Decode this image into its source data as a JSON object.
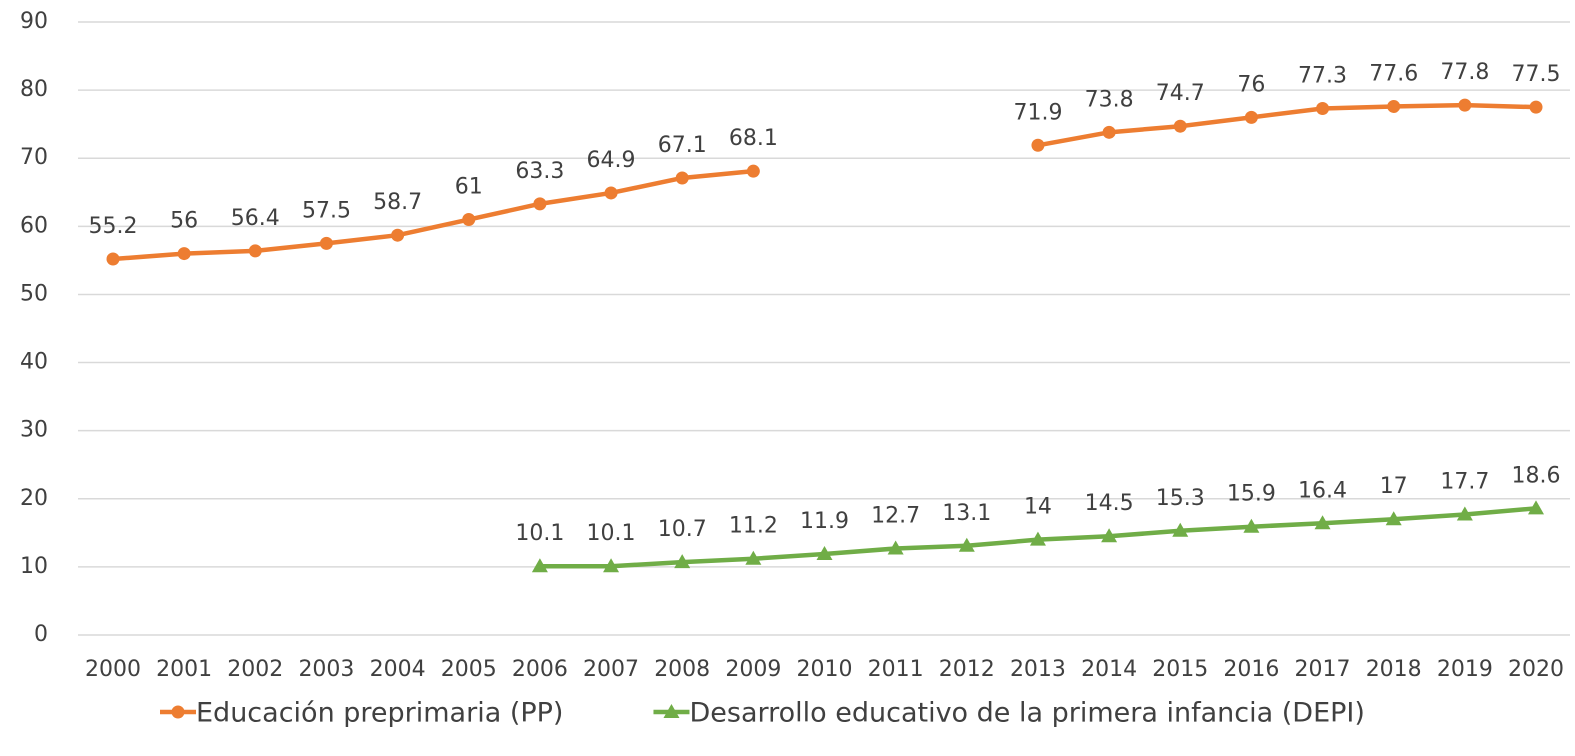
{
  "chart_data": {
    "type": "line",
    "categories": [
      "2000",
      "2001",
      "2002",
      "2003",
      "2004",
      "2005",
      "2006",
      "2007",
      "2008",
      "2009",
      "2010",
      "2011",
      "2012",
      "2013",
      "2014",
      "2015",
      "2016",
      "2017",
      "2018",
      "2019",
      "2020"
    ],
    "series": [
      {
        "name": "Educación preprimaria (PP)",
        "color": "#ed7d31",
        "marker": "circle",
        "values": [
          55.2,
          56,
          56.4,
          57.5,
          58.7,
          61,
          63.3,
          64.9,
          67.1,
          68.1,
          null,
          null,
          null,
          71.9,
          73.8,
          74.7,
          76,
          77.3,
          77.6,
          77.8,
          77.5
        ]
      },
      {
        "name": "Desarrollo educativo de la primera infancia (DEPI)",
        "color": "#70ad47",
        "marker": "triangle",
        "values": [
          null,
          null,
          null,
          null,
          null,
          null,
          10.1,
          10.1,
          10.7,
          11.2,
          11.9,
          12.7,
          13.1,
          14,
          14.5,
          15.3,
          15.9,
          16.4,
          17,
          17.7,
          18.6
        ]
      }
    ],
    "ylim": [
      0,
      90
    ],
    "yticks": [
      0,
      10,
      20,
      30,
      40,
      50,
      60,
      70,
      80,
      90
    ],
    "grid": true,
    "legend": "bottom",
    "data_labels": true
  }
}
